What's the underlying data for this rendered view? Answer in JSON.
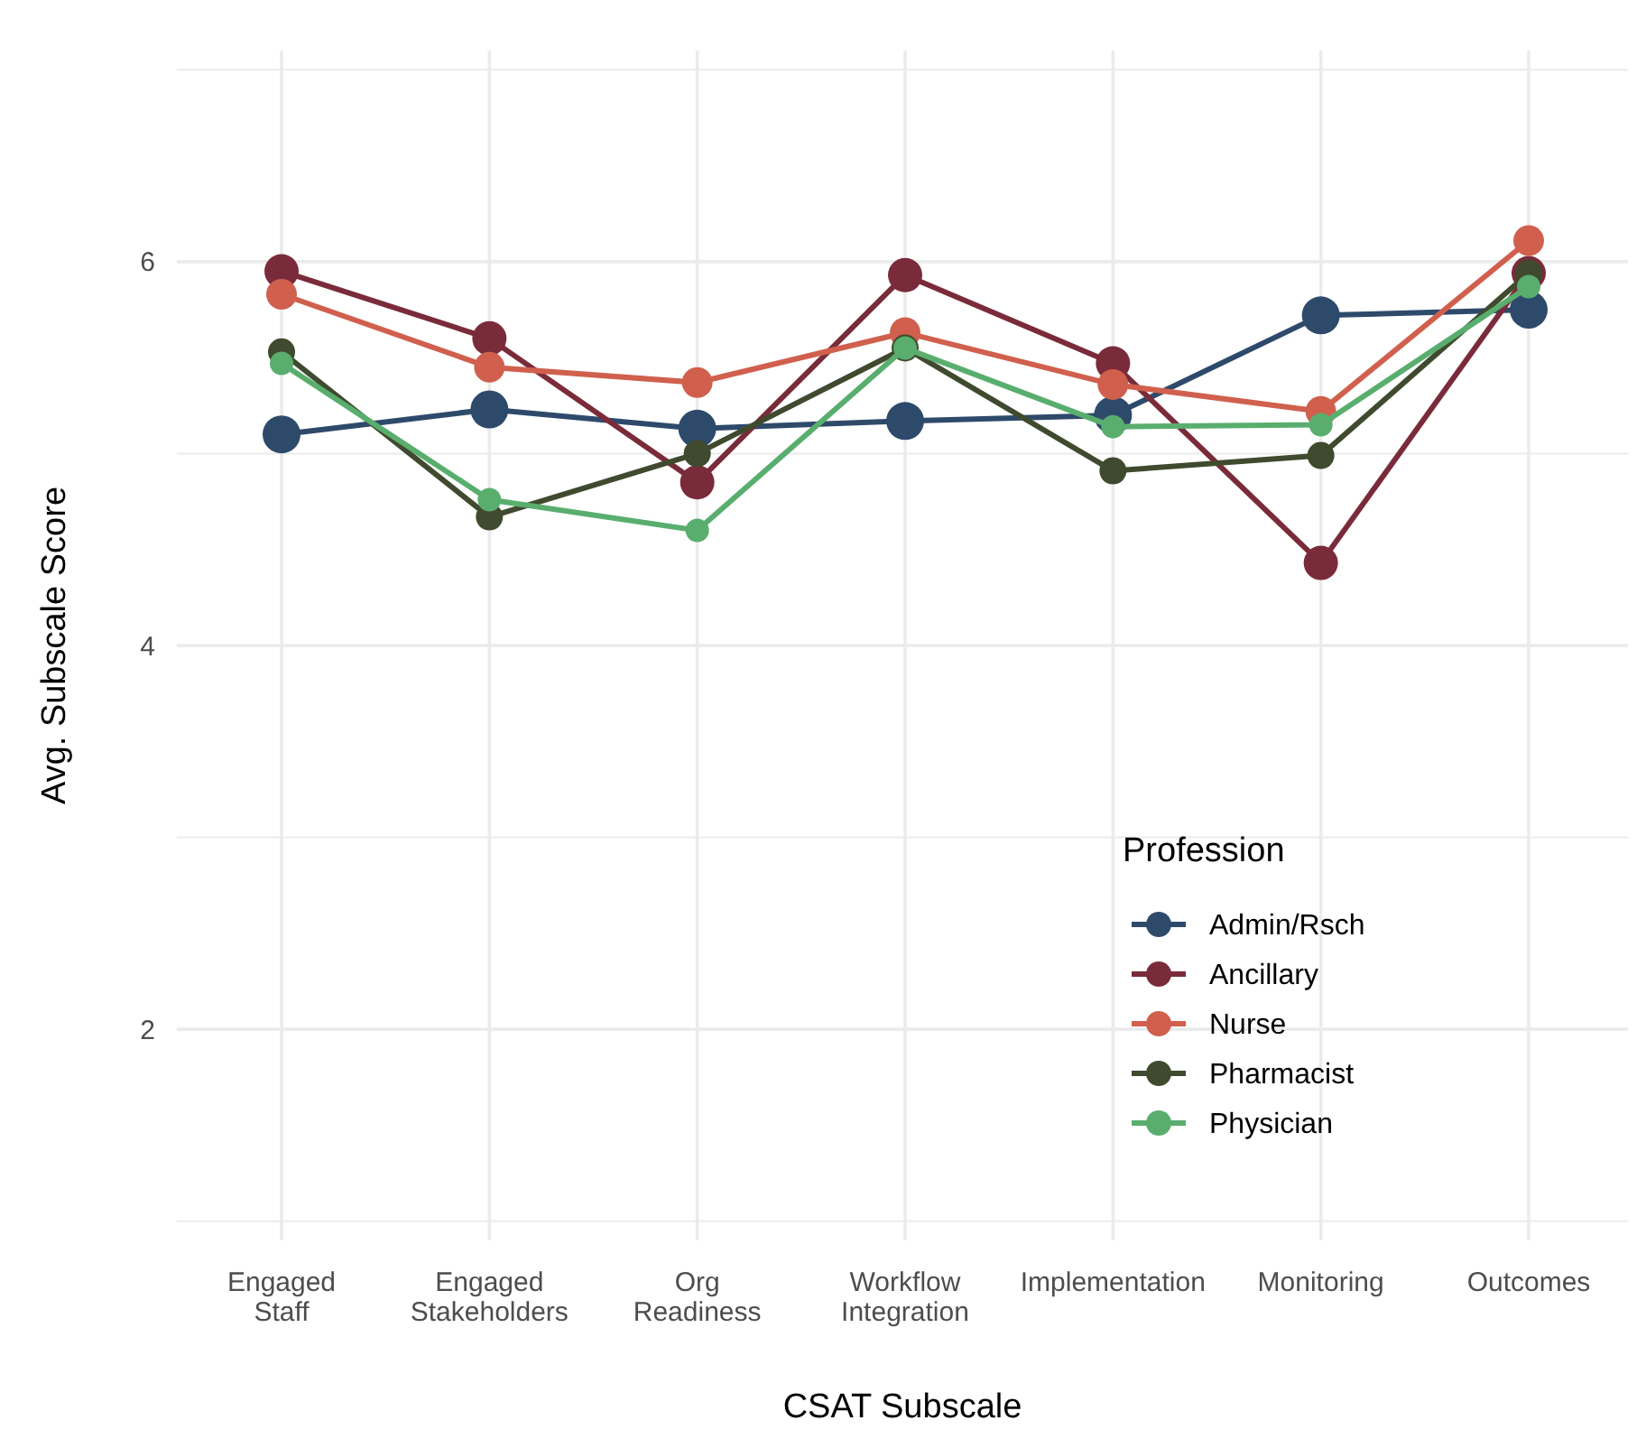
{
  "chart_data": {
    "type": "line",
    "xlabel": "CSAT Subscale",
    "ylabel": "Avg. Subscale Score",
    "legend_title": "Profession",
    "legend": "bottom right",
    "grid": true,
    "marker": "circle",
    "line_style": "solid",
    "categories": [
      "Engaged\nStaff",
      "Engaged\nStakeholders",
      "Org\nReadiness",
      "Workflow\nIntegration",
      "Implementation",
      "Monitoring",
      "Outcomes"
    ],
    "ylim": [
      0.9,
      7.1
    ],
    "yticks": [
      {
        "value": 1,
        "label": null
      },
      2,
      {
        "value": 3,
        "label": null
      },
      4,
      {
        "value": 5,
        "label": null
      },
      6,
      {
        "value": 7,
        "label": null
      }
    ],
    "series": [
      {
        "name": "Admin/Rsch",
        "color": "#2e4a6b",
        "values": [
          5.1,
          5.23,
          5.13,
          5.17,
          5.2,
          5.72,
          5.75
        ]
      },
      {
        "name": "Ancillary",
        "color": "#7a2b3a",
        "values": [
          5.95,
          5.6,
          4.85,
          5.93,
          5.47,
          4.43,
          5.94
        ]
      },
      {
        "name": "Nurse",
        "color": "#d0604d",
        "values": [
          5.83,
          5.45,
          5.37,
          5.63,
          5.36,
          5.22,
          6.11
        ]
      },
      {
        "name": "Pharmacist",
        "color": "#3f4a2e",
        "values": [
          5.53,
          4.67,
          5.0,
          5.55,
          4.91,
          4.99,
          5.94
        ]
      },
      {
        "name": "Physician",
        "color": "#59ae6e",
        "values": [
          5.47,
          4.76,
          4.6,
          5.55,
          5.14,
          5.15,
          5.87
        ]
      }
    ]
  }
}
